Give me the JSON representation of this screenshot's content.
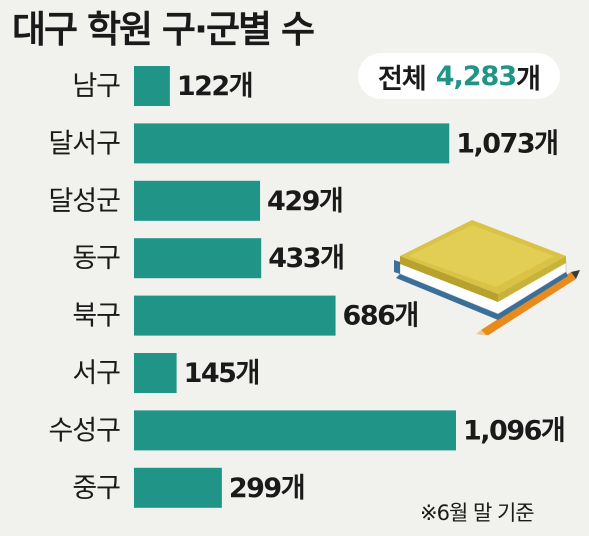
{
  "title": "대구 학원 구·군별 수",
  "total": {
    "label": "전체",
    "value": "4,283",
    "unit": "개"
  },
  "footnote": "※6월 말 기준",
  "colors": {
    "bar": "#1f9487",
    "background": "#f1f1ed",
    "accent": "#1f9487"
  },
  "icons": [
    "book-icon",
    "pencil-icon"
  ],
  "chart_data": {
    "type": "bar",
    "orientation": "horizontal",
    "title": "대구 학원 구·군별 수",
    "categories": [
      "남구",
      "달서구",
      "달성군",
      "동구",
      "북구",
      "서구",
      "수성구",
      "중구"
    ],
    "values": [
      122,
      1073,
      429,
      433,
      686,
      145,
      1096,
      299
    ],
    "value_labels": [
      "122개",
      "1,073개",
      "429개",
      "433개",
      "686개",
      "145개",
      "1,096개",
      "299개"
    ],
    "unit": "개",
    "xlabel": "",
    "ylabel": "",
    "grid": false
  }
}
